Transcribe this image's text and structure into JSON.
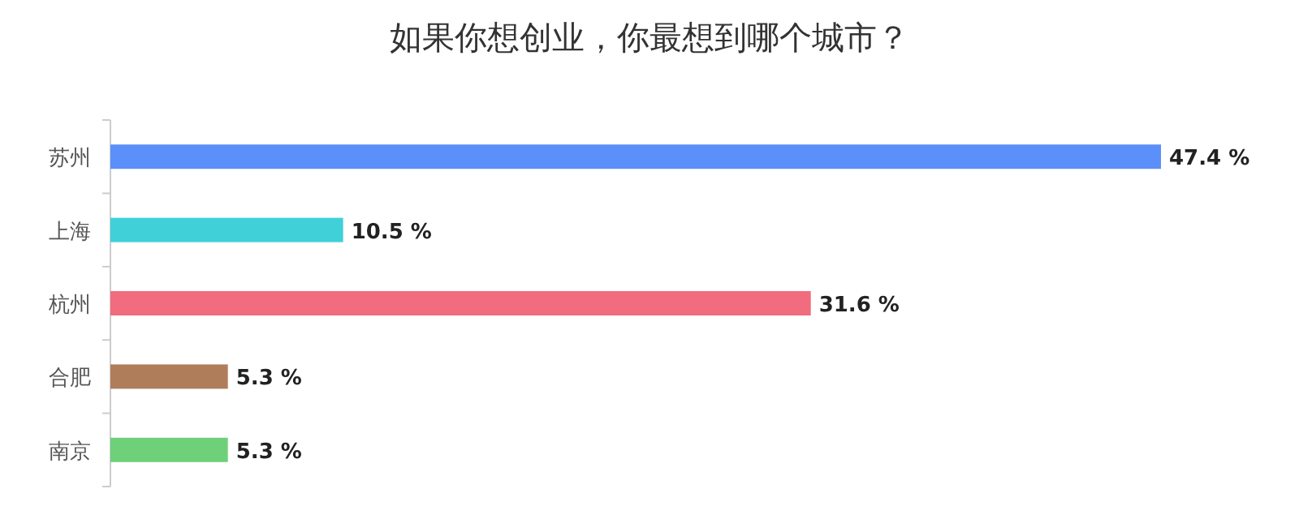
{
  "chart_data": {
    "type": "bar",
    "orientation": "horizontal",
    "title": "如果你想创业，你最想到哪个城市？",
    "categories": [
      "苏州",
      "上海",
      "杭州",
      "合肥",
      "南京"
    ],
    "values": [
      47.4,
      10.5,
      31.6,
      5.3,
      5.3
    ],
    "value_labels": [
      "47.4 %",
      "10.5 %",
      "31.6 %",
      "5.3 %",
      "5.3 %"
    ],
    "colors": [
      "#5b8ff9",
      "#3fd0d8",
      "#f06c7e",
      "#b07d5b",
      "#6fd07a"
    ]
  }
}
